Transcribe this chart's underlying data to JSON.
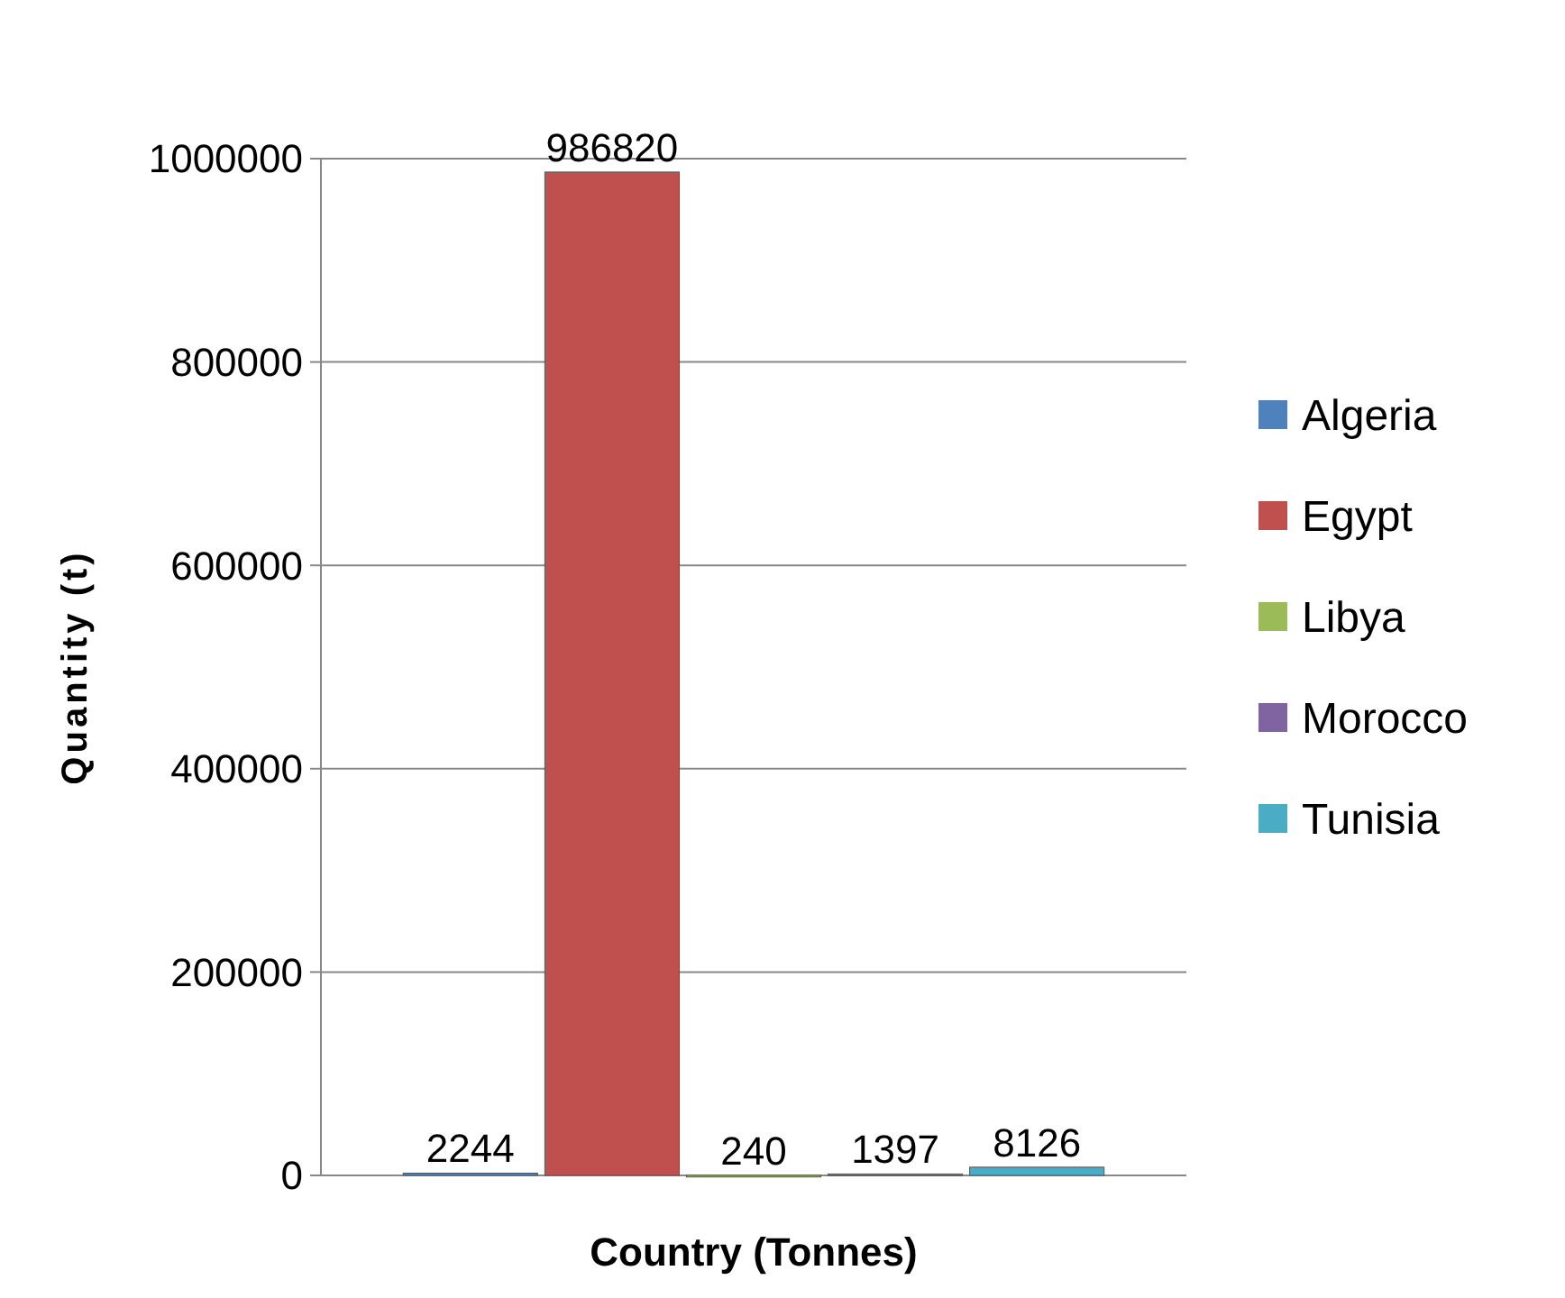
{
  "chart_data": {
    "type": "bar",
    "xlabel": "Country (Tonnes)",
    "ylabel": "Quantity (t)",
    "categories": [
      null
    ],
    "series": [
      {
        "name": "Algeria",
        "color": "#4f81bd",
        "values": [
          2244
        ]
      },
      {
        "name": "Egypt",
        "color": "#c0504d",
        "values": [
          986820
        ]
      },
      {
        "name": "Libya",
        "color": "#9bbb59",
        "values": [
          240
        ]
      },
      {
        "name": "Morocco",
        "color": "#8064a2",
        "values": [
          1397
        ]
      },
      {
        "name": "Tunisia",
        "color": "#4bacc6",
        "values": [
          8126
        ]
      }
    ],
    "ylim": [
      0,
      1000000
    ],
    "yticks": [
      0,
      200000,
      400000,
      600000,
      800000,
      1000000
    ],
    "grid": "y",
    "legend": "right",
    "data_labels": true
  }
}
